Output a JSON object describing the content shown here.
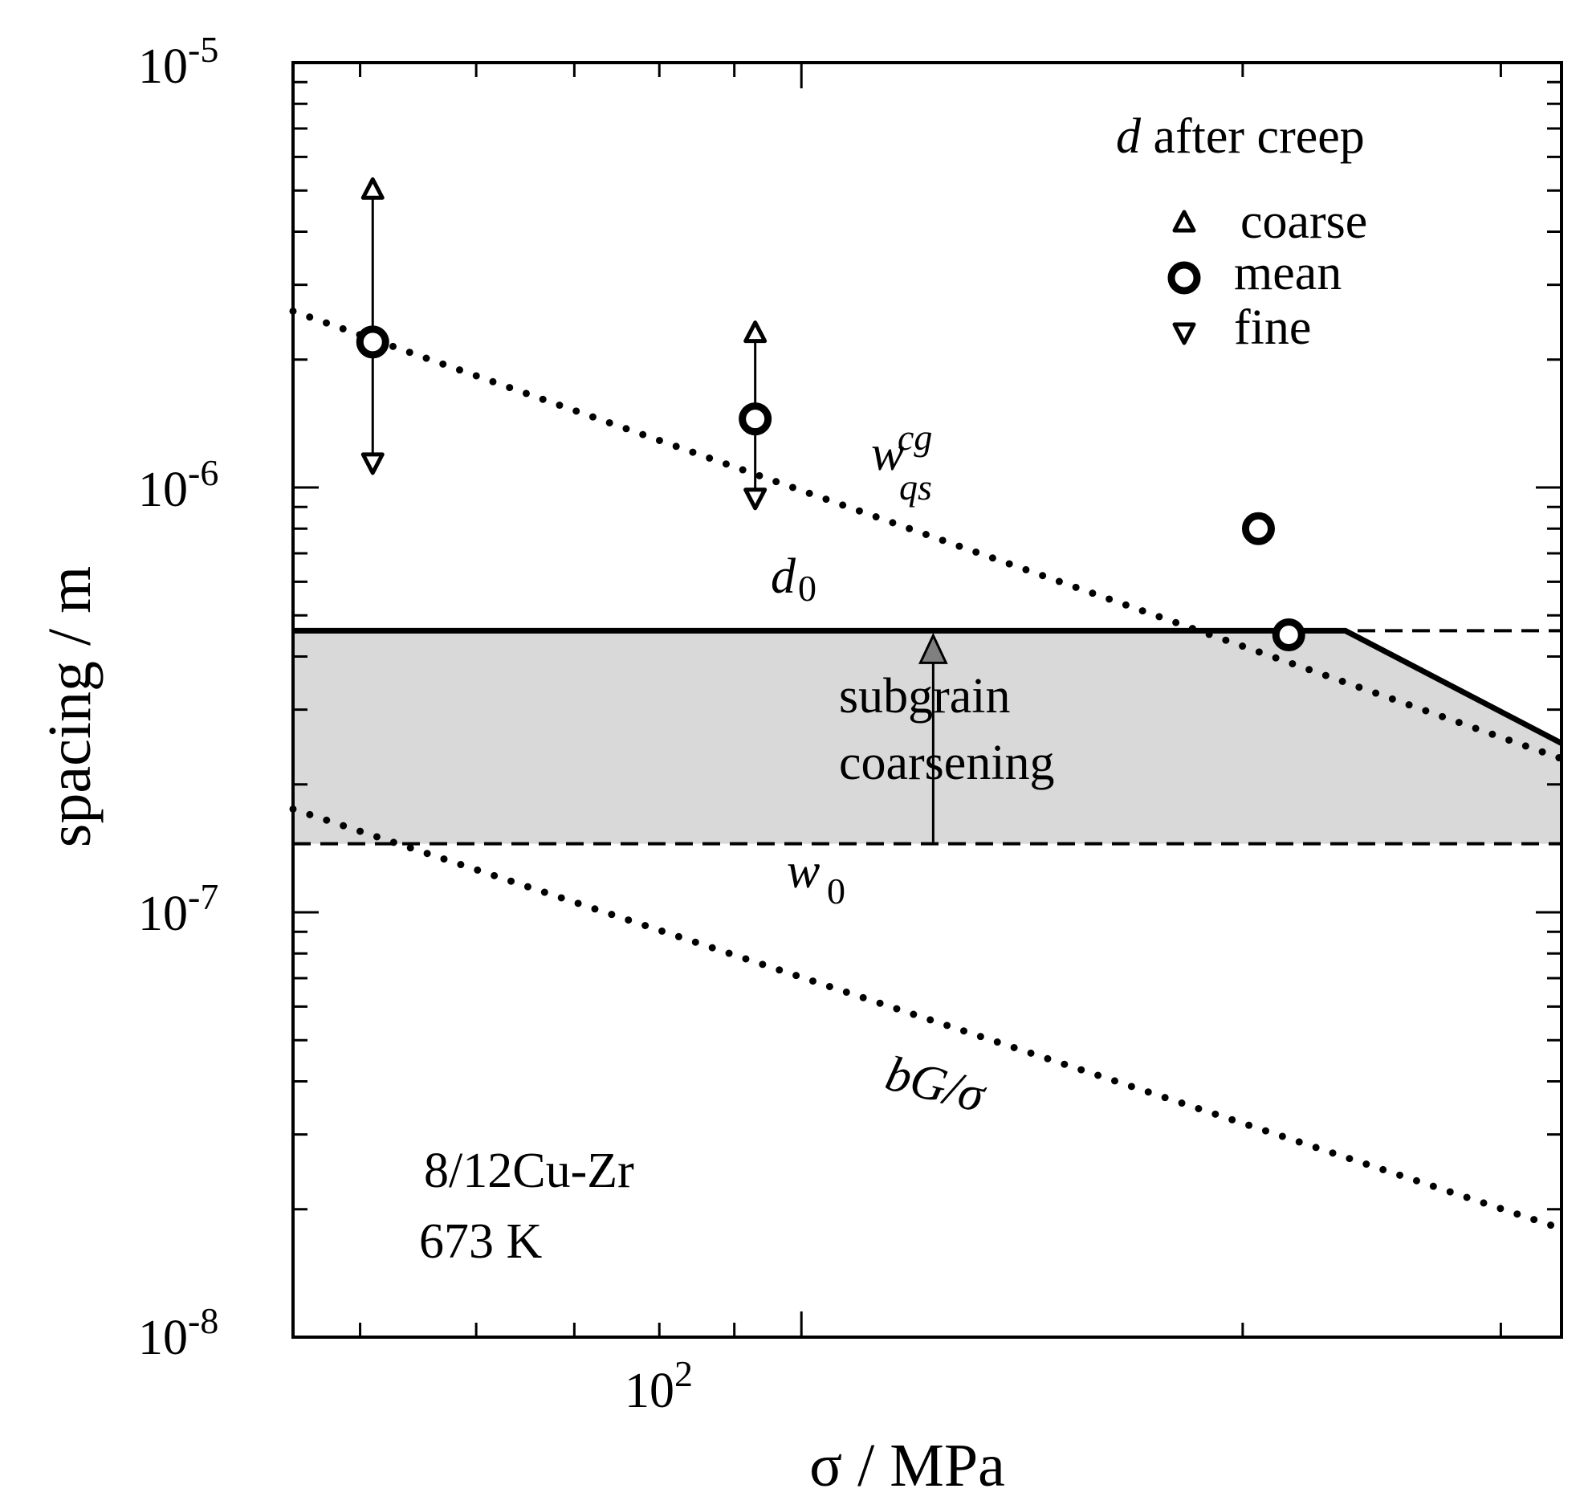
{
  "chart_data": {
    "type": "scatter",
    "xscale": "log",
    "yscale": "log",
    "xlim": [
      45,
      330
    ],
    "ylim": [
      1e-08,
      1e-05
    ],
    "xlabel": "σ / MPa",
    "ylabel": "spacing / m",
    "xticks": [
      {
        "value": 100,
        "base": "10",
        "exp": "2"
      }
    ],
    "yticks": [
      {
        "value": 1e-08,
        "base": "10",
        "exp": "-8"
      },
      {
        "value": 1e-07,
        "base": "10",
        "exp": "-7"
      },
      {
        "value": 1e-06,
        "base": "10",
        "exp": "-6"
      },
      {
        "value": 1e-05,
        "base": "10",
        "exp": "-5"
      }
    ],
    "legend": {
      "title_italic": "d",
      "title": " after creep",
      "position": "top-right",
      "entries": [
        {
          "name": "coarse",
          "marker": "triangle-up"
        },
        {
          "name": "mean",
          "marker": "circle"
        },
        {
          "name": "fine",
          "marker": "triangle-down"
        }
      ]
    },
    "series": [
      {
        "name": "coarse",
        "marker": "triangle-up",
        "points": [
          [
            51,
            5e-06
          ],
          [
            93,
            2.3e-06
          ]
        ]
      },
      {
        "name": "mean",
        "marker": "circle",
        "points": [
          [
            51,
            2.2e-06
          ],
          [
            93,
            1.45e-06
          ],
          [
            205,
            8e-07
          ],
          [
            215,
            4.5e-07
          ]
        ]
      },
      {
        "name": "fine",
        "marker": "triangle-down",
        "points": [
          [
            51,
            1.15e-06
          ],
          [
            93,
            9.5e-07
          ]
        ]
      }
    ],
    "lines": [
      {
        "name": "w_qs^cg",
        "style": "dotted",
        "points": [
          [
            45,
            2.6e-06
          ],
          [
            330,
            2.3e-07
          ]
        ]
      },
      {
        "name": "bG/σ",
        "style": "dotted",
        "points": [
          [
            45,
            1.75e-07
          ],
          [
            330,
            1.8e-08
          ]
        ]
      },
      {
        "name": "d0",
        "style": "solid",
        "points": [
          [
            45,
            4.6e-07
          ],
          [
            235,
            4.6e-07
          ],
          [
            330,
            2.5e-07
          ]
        ]
      },
      {
        "name": "d0 dashed",
        "style": "dashed",
        "points": [
          [
            45,
            4.6e-07
          ],
          [
            330,
            4.6e-07
          ]
        ]
      },
      {
        "name": "w0",
        "style": "dashed",
        "points": [
          [
            45,
            1.45e-07
          ],
          [
            330,
            1.45e-07
          ]
        ]
      }
    ],
    "shaded_region": {
      "label": "subgrain coarsening",
      "lower": 1.45e-07,
      "upper": 4.6e-07
    },
    "arrow": {
      "x": 123,
      "from": 1.45e-07,
      "to": 4.6e-07
    },
    "annotations": {
      "w_main": "w",
      "w_sup": "cg",
      "w_sub": "qs",
      "d0_main": "d",
      "d0_sub": "0",
      "w0_main": "w",
      "w0_sub": "0",
      "bg": "bG/σ",
      "subgrain": "subgrain",
      "coarsening": "coarsening",
      "material": "8/12Cu-Zr",
      "temperature": "673 K"
    }
  }
}
